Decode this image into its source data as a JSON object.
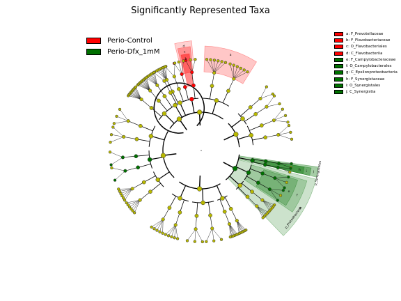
{
  "title": "Significantly Represented Taxa",
  "colors": {
    "control": "#ff0000",
    "dfx": "#007000",
    "neutral": "#b8b800",
    "edge": "#000000"
  },
  "groups": [
    {
      "label": "Perio-Control",
      "color": "#ff0000"
    },
    {
      "label": "Perio-Dfx_1mM",
      "color": "#007000"
    }
  ],
  "taxa_legend": [
    {
      "label": "a: F_Prevotellaceae",
      "color": "#ff0000"
    },
    {
      "label": "b: F_Flavobacteriaceae",
      "color": "#ff0000"
    },
    {
      "label": "c: O_Flavobacteriales",
      "color": "#ff0000"
    },
    {
      "label": "d: C_Flavobacteriia",
      "color": "#ff0000"
    },
    {
      "label": "e: F_Campylobacteraceae",
      "color": "#007000"
    },
    {
      "label": "f: O_Campylobacterales",
      "color": "#007000"
    },
    {
      "label": "g: C_Epsilonproteobacteria",
      "color": "#007000"
    },
    {
      "label": "h: F_Synergistaceae",
      "color": "#007000"
    },
    {
      "label": "i: O_Synergistales",
      "color": "#007000"
    },
    {
      "label": "j: C_Synergistia",
      "color": "#007000"
    }
  ],
  "clade_labels": {
    "a": "a",
    "b": "b",
    "c": "c",
    "d": "d",
    "e": "e",
    "f": "f",
    "g": "g",
    "h": "h",
    "i": "i",
    "j": "j",
    "phylum_dfx": "p_Synergistetes",
    "phylum_dfx2": "p_Proteobacteria"
  }
}
